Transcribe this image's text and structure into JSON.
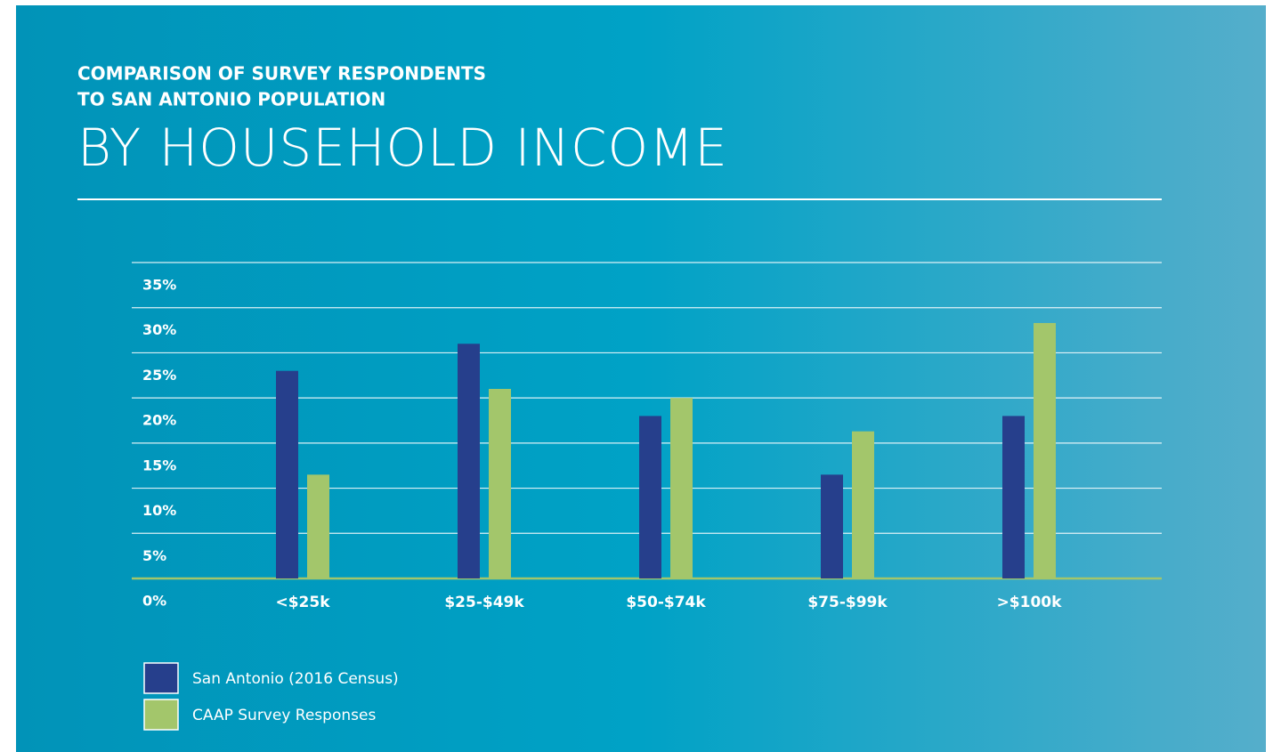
{
  "chart_data": {
    "type": "bar",
    "title_lines": [
      "COMPARISON OF SURVEY RESPONDENTS",
      "TO SAN ANTONIO POPULATION"
    ],
    "subtitle": "BY HOUSEHOLD INCOME",
    "categories": [
      "<$25k",
      "$25-$49k",
      "$50-$74k",
      "$75-$99k",
      ">$100k"
    ],
    "series": [
      {
        "name": "San Antonio (2016 Census)",
        "color": "#263f8c",
        "values": [
          23,
          26,
          18,
          11.5,
          18
        ]
      },
      {
        "name": "CAAP Survey Responses",
        "color": "#a3c66b",
        "values": [
          11.5,
          21,
          20,
          16.3,
          28.3
        ]
      }
    ],
    "ylim": [
      0,
      35
    ],
    "yticks": [
      {
        "value": 0,
        "label": "0%"
      },
      {
        "value": 5,
        "label": "5%"
      },
      {
        "value": 10,
        "label": "10%"
      },
      {
        "value": 15,
        "label": "15%"
      },
      {
        "value": 20,
        "label": "20%"
      },
      {
        "value": 25,
        "label": "25%"
      },
      {
        "value": 30,
        "label": "30%"
      },
      {
        "value": 35,
        "label": "35%"
      }
    ],
    "grid": true,
    "legend": "bottom-left"
  }
}
